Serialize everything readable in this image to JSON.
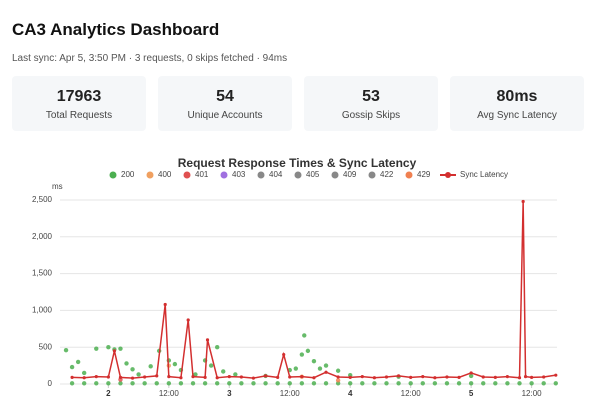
{
  "header": {
    "title": "CA3 Analytics Dashboard",
    "subtitle": "Last sync: Apr 5, 3:50 PM · 3 requests, 0 skips fetched · 94ms"
  },
  "stats": [
    {
      "value": "17963",
      "label": "Total Requests"
    },
    {
      "value": "54",
      "label": "Unique Accounts"
    },
    {
      "value": "53",
      "label": "Gossip Skips"
    },
    {
      "value": "80ms",
      "label": "Avg Sync Latency"
    }
  ],
  "chart_data": {
    "type": "scatter",
    "title": "Request Response Times & Sync Latency",
    "y_label": "ms",
    "xlim": [
      1.6,
      5.71
    ],
    "ylim": [
      0,
      2500
    ],
    "grid": true,
    "xticks": [
      {
        "value": 2,
        "label": "2"
      },
      {
        "value": 2.5,
        "label": "12:00"
      },
      {
        "value": 3,
        "label": "3"
      },
      {
        "value": 3.5,
        "label": "12:00"
      },
      {
        "value": 4,
        "label": "4"
      },
      {
        "value": 4.5,
        "label": "12:00"
      },
      {
        "value": 5,
        "label": "5"
      },
      {
        "value": 5.5,
        "label": "12:00"
      }
    ],
    "yticks": [
      0,
      500,
      {
        "value": 1000,
        "label": "1,000"
      },
      {
        "value": 1500,
        "label": "1,500"
      },
      {
        "value": 2000,
        "label": "2,000"
      },
      {
        "value": 2500,
        "label": "2,500"
      }
    ],
    "series": [
      {
        "name": "200",
        "color": "#4caf50",
        "x": [
          1.65,
          1.7,
          1.7,
          1.75,
          1.8,
          1.8,
          1.9,
          1.9,
          2.0,
          2.0,
          2.05,
          2.1,
          2.1,
          2.15,
          2.2,
          2.2,
          2.25,
          2.3,
          2.35,
          2.4,
          2.42,
          2.5,
          2.5,
          2.55,
          2.6,
          2.6,
          2.7,
          2.72,
          2.8,
          2.8,
          2.85,
          2.9,
          2.9,
          2.95,
          3.0,
          3.05,
          3.1,
          3.2,
          3.3,
          3.3,
          3.4,
          3.5,
          3.5,
          3.55,
          3.6,
          3.6,
          3.62,
          3.65,
          3.7,
          3.7,
          3.75,
          3.8,
          3.8,
          3.9,
          3.9,
          4.0,
          4.0,
          4.1,
          4.2,
          4.3,
          4.4,
          4.4,
          4.5,
          4.6,
          4.7,
          4.8,
          4.9,
          5.0,
          5.0,
          5.1,
          5.2,
          5.3,
          5.4,
          5.5,
          5.6,
          5.7
        ],
        "values": [
          460,
          10,
          230,
          300,
          10,
          150,
          10,
          480,
          10,
          500,
          470,
          10,
          480,
          280,
          10,
          200,
          130,
          10,
          240,
          10,
          450,
          10,
          320,
          270,
          10,
          190,
          10,
          130,
          10,
          320,
          250,
          10,
          500,
          170,
          10,
          130,
          10,
          10,
          10,
          110,
          10,
          10,
          190,
          210,
          10,
          400,
          660,
          450,
          10,
          310,
          210,
          10,
          250,
          10,
          180,
          10,
          120,
          10,
          10,
          10,
          10,
          100,
          10,
          10,
          10,
          10,
          10,
          10,
          110,
          10,
          10,
          10,
          10,
          10,
          10,
          10
        ]
      },
      {
        "name": "400",
        "color": "#f0a060",
        "x": [
          2.5,
          3.6
        ],
        "values": [
          250,
          100
        ]
      },
      {
        "name": "401",
        "color": "#e05050",
        "x": [
          2.1
        ],
        "values": [
          60
        ]
      },
      {
        "name": "403",
        "color": "#a070e0",
        "x": [],
        "values": []
      },
      {
        "name": "404",
        "color": "#888888",
        "x": [],
        "values": []
      },
      {
        "name": "405",
        "color": "#888888",
        "x": [],
        "values": []
      },
      {
        "name": "409",
        "color": "#888888",
        "x": [],
        "values": []
      },
      {
        "name": "422",
        "color": "#888888",
        "x": [],
        "values": []
      },
      {
        "name": "429",
        "color": "#f08050",
        "x": [
          3.9
        ],
        "values": [
          50
        ]
      },
      {
        "name": "Sync Latency",
        "color": "#d32f2f",
        "kind": "line",
        "x": [
          1.7,
          1.8,
          1.9,
          2.0,
          2.05,
          2.1,
          2.2,
          2.3,
          2.4,
          2.47,
          2.5,
          2.6,
          2.66,
          2.7,
          2.8,
          2.82,
          2.9,
          3.0,
          3.1,
          3.2,
          3.3,
          3.4,
          3.45,
          3.5,
          3.6,
          3.7,
          3.8,
          3.9,
          4.0,
          4.1,
          4.2,
          4.3,
          4.4,
          4.5,
          4.6,
          4.7,
          4.8,
          4.9,
          5.0,
          5.1,
          5.2,
          5.3,
          5.4,
          5.43,
          5.45,
          5.5,
          5.6,
          5.7
        ],
        "values": [
          90,
          85,
          100,
          95,
          450,
          90,
          80,
          95,
          110,
          1080,
          100,
          85,
          870,
          100,
          90,
          600,
          85,
          100,
          95,
          80,
          110,
          90,
          400,
          95,
          100,
          85,
          160,
          95,
          90,
          100,
          85,
          95,
          110,
          90,
          100,
          85,
          95,
          90,
          150,
          95,
          90,
          100,
          85,
          2480,
          100,
          90,
          95,
          120
        ]
      }
    ]
  }
}
